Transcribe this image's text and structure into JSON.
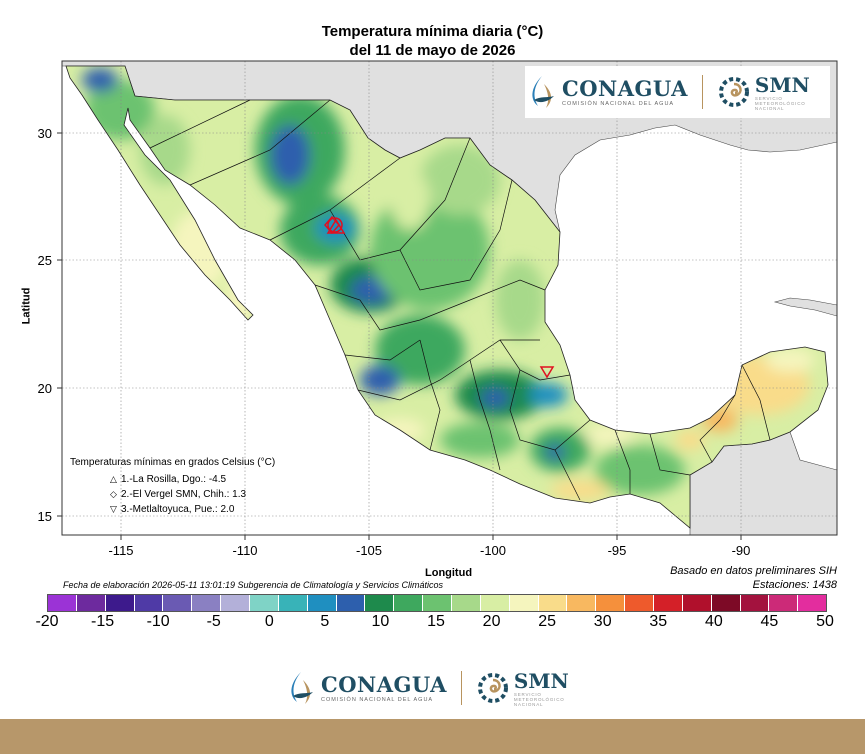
{
  "title": {
    "line1": "Temperatura mínima diaria (°C)",
    "line2": "del 11 de mayo de 2026"
  },
  "axes": {
    "xlabel": "Longitud",
    "ylabel": "Latitud",
    "x_ticks": [
      "-115",
      "-110",
      "-105",
      "-100",
      "-95",
      "-90"
    ],
    "y_ticks": [
      "30",
      "25",
      "20",
      "15"
    ],
    "x_range": [
      -117,
      -86.2
    ],
    "y_range": [
      14.5,
      32.8
    ],
    "grid": true
  },
  "legend": {
    "title": "Temperaturas mínimas en grados Celsius (°C)",
    "items": [
      {
        "symbol": "△",
        "text": "1.-La Rosilla, Dgo.: -4.5"
      },
      {
        "symbol": "◇",
        "text": "2.-El Vergel SMN, Chih.: 1.3"
      },
      {
        "symbol": "▽",
        "text": "3.-Metlaltoyuca, Pue.: 2.0"
      }
    ]
  },
  "meta": {
    "elaboration": "Fecha de elaboración 2026-05-11 13:01:19 Subgerencia de Climatología y Servicios Climáticos",
    "basis": "Basado en datos preliminares SIH",
    "stations": "Estaciones:  1438"
  },
  "colorbar": {
    "ticks": [
      "-20",
      "-15",
      "-10",
      "-5",
      "0",
      "5",
      "10",
      "15",
      "20",
      "25",
      "30",
      "35",
      "40",
      "45",
      "50"
    ],
    "colors": [
      "#9b33d6",
      "#6d2a9e",
      "#3d1a8c",
      "#4f3aa6",
      "#6a5ab3",
      "#8a80c2",
      "#b3b0d9",
      "#7fd3c6",
      "#38b3b8",
      "#1f8fc0",
      "#2d5fad",
      "#1e8a4c",
      "#3ea85e",
      "#6cc270",
      "#a7d98a",
      "#d8eea4",
      "#f5f5be",
      "#f9dc8a",
      "#f8b860",
      "#f5903c",
      "#ee5a2c",
      "#d42028",
      "#b0102c",
      "#7d0a26",
      "#a3123e",
      "#cc2a78",
      "#e32d9e"
    ]
  },
  "logos": {
    "conagua": "CONAGUA",
    "conagua_sub": "COMISIÓN NACIONAL DEL AGUA",
    "smn": "SMN",
    "smn_sub1": "SERVICIO",
    "smn_sub2": "METEOROLÓGICO",
    "smn_sub3": "NACIONAL"
  },
  "colors": {
    "land_foreign": "#e0e0e0",
    "ocean": "#ffffff",
    "footer_band": "#b7976a"
  },
  "chart_data": {
    "type": "heatmap",
    "title": "Temperatura mínima diaria (°C) del 11 de mayo de 2026",
    "xlabel": "Longitud",
    "ylabel": "Latitud",
    "xlim": [
      -117,
      -86.2
    ],
    "ylim": [
      14.5,
      32.8
    ],
    "color_scale_min": -20,
    "color_scale_max": 50,
    "color_scale_step": 2.5,
    "stations_marked": [
      {
        "rank": 1,
        "name": "La Rosilla, Dgo.",
        "value": -4.5
      },
      {
        "rank": 2,
        "name": "El Vergel SMN, Chih.",
        "value": 1.3
      },
      {
        "rank": 3,
        "name": "Metlaltoyuca, Pue.",
        "value": 2.0
      }
    ]
  }
}
